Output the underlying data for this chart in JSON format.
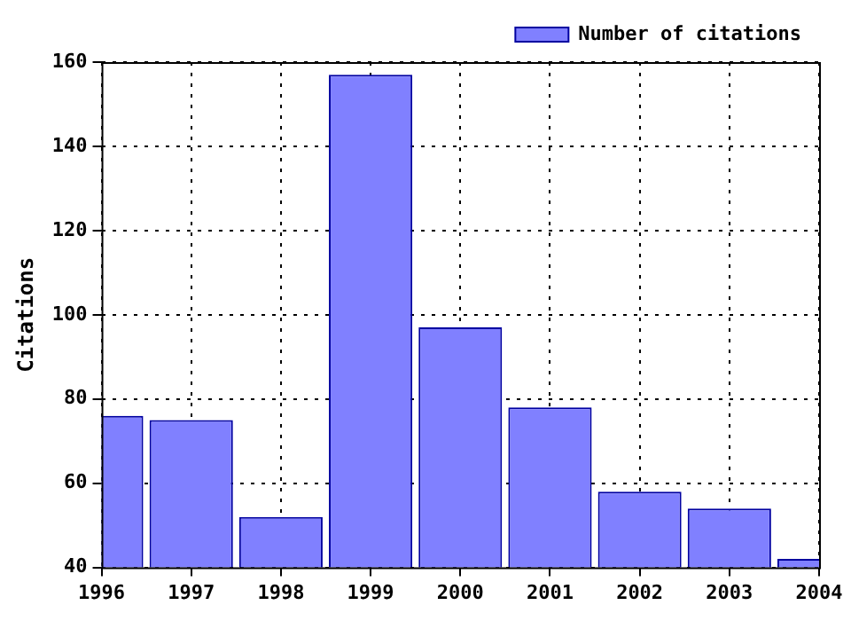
{
  "chart_data": {
    "type": "bar",
    "ylabel": "Citations",
    "x": [
      1996,
      1997,
      1998,
      1999,
      2000,
      2001,
      2002,
      2003,
      2004
    ],
    "xlim": [
      1996,
      2004
    ],
    "xticks": [
      1996,
      1997,
      1998,
      1999,
      2000,
      2001,
      2002,
      2003,
      2004
    ],
    "ylim": [
      40,
      160
    ],
    "yticks": [
      40,
      60,
      80,
      100,
      120,
      140,
      160
    ],
    "series": [
      {
        "name": "Number of citations",
        "color": "#8080ff",
        "values": [
          76,
          75,
          52,
          157,
          97,
          78,
          58,
          54,
          42
        ]
      }
    ],
    "grid": true,
    "legend": "top right"
  }
}
